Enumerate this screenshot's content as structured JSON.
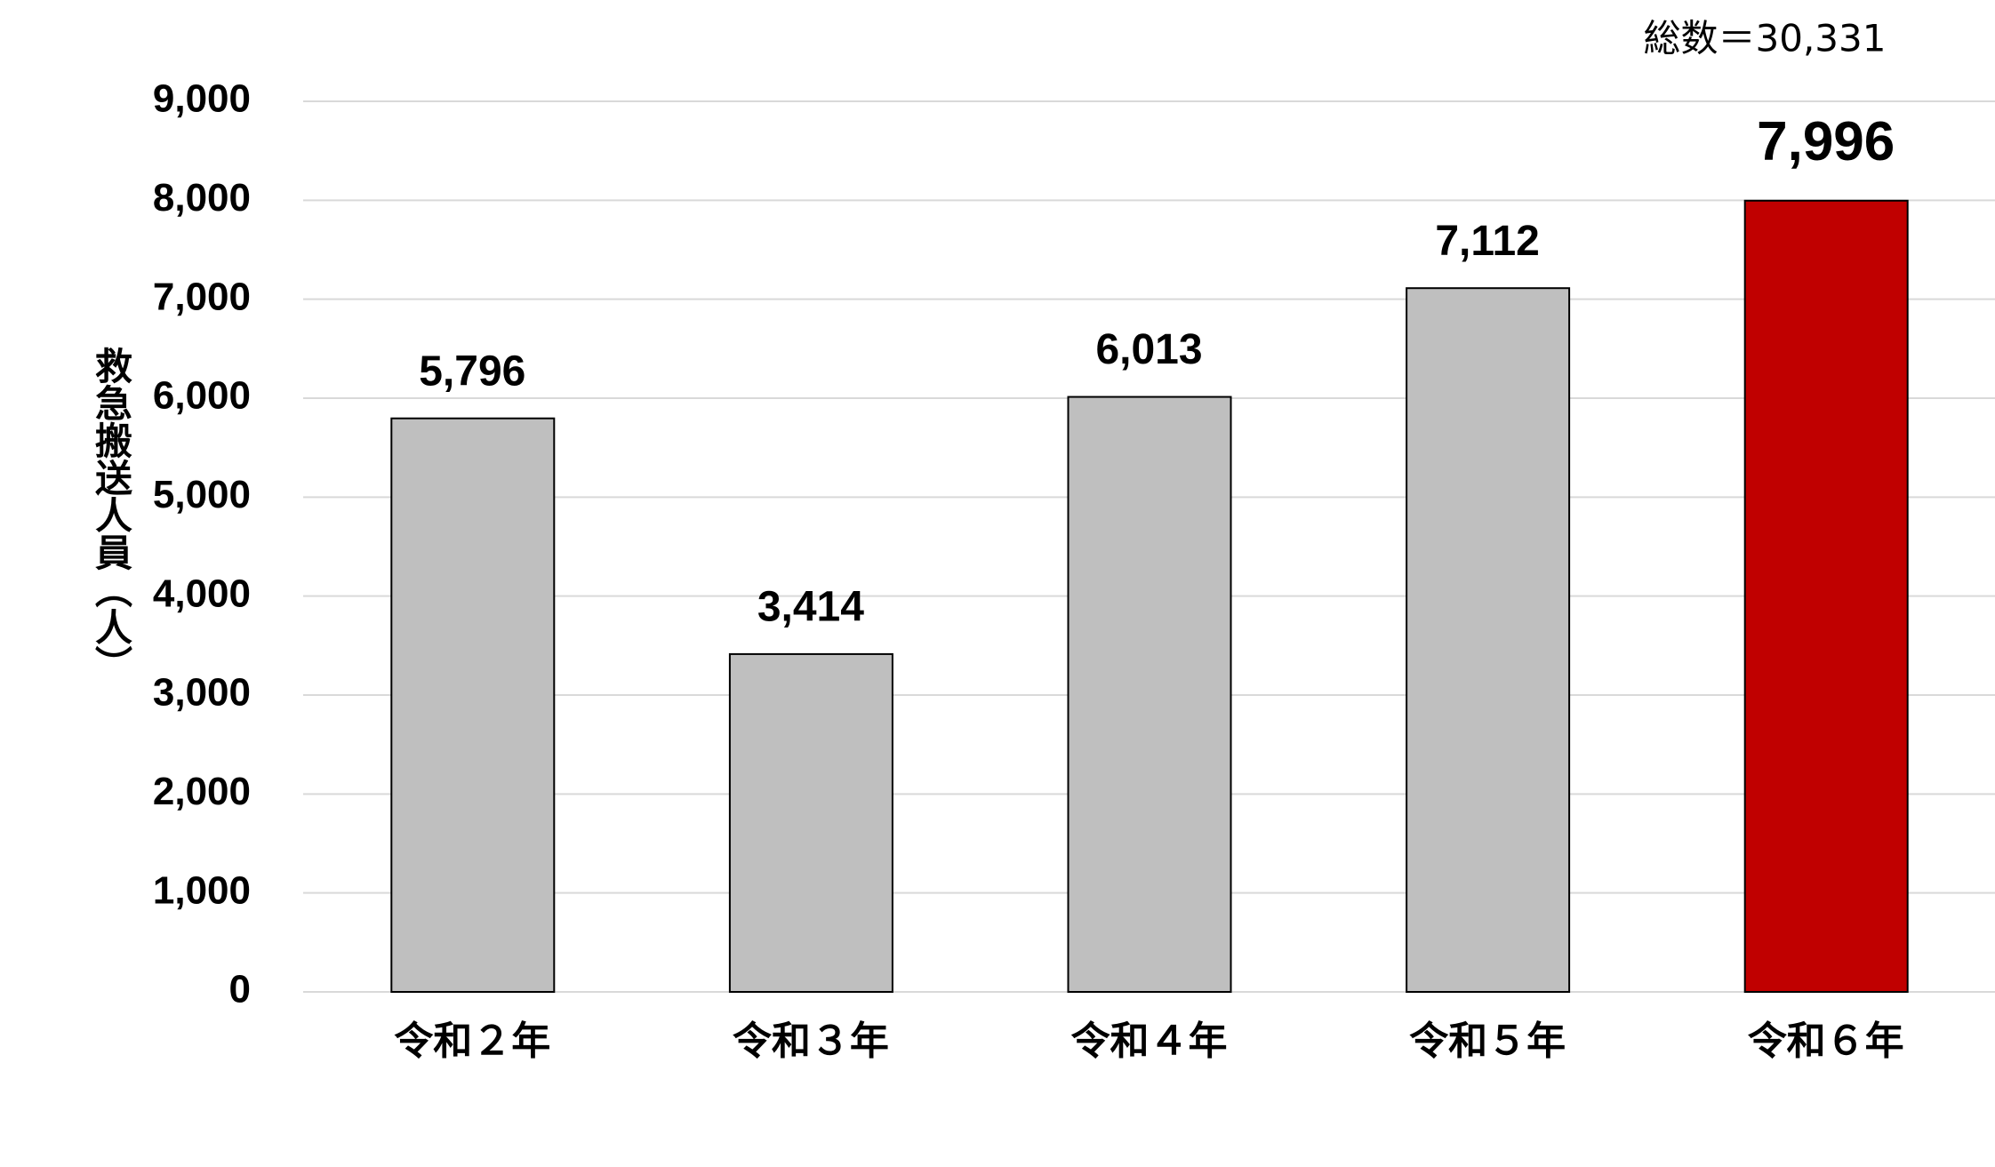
{
  "chart_data": {
    "type": "bar",
    "y_label": "救急搬送人員（人）",
    "annotation": "総数＝30,331",
    "categories": [
      "令和２年",
      "令和３年",
      "令和４年",
      "令和５年",
      "令和６年"
    ],
    "values": [
      5796,
      3414,
      6013,
      7112,
      7996
    ],
    "value_labels": [
      "5,796",
      "3,414",
      "6,013",
      "7,112",
      "7,996"
    ],
    "colors": [
      "#bfbfbf",
      "#bfbfbf",
      "#bfbfbf",
      "#bfbfbf",
      "#c00000"
    ],
    "ylim": [
      0,
      9000
    ],
    "yticks": [
      0,
      {
        "value": 1000,
        "label": "1,000"
      },
      {
        "value": 2000,
        "label": "2,000"
      },
      {
        "value": 3000,
        "label": "3,000"
      },
      {
        "value": 4000,
        "label": "4,000"
      },
      {
        "value": 5000,
        "label": "5,000"
      },
      {
        "value": 6000,
        "label": "6,000"
      },
      {
        "value": 7000,
        "label": "7,000"
      },
      {
        "value": 8000,
        "label": "8,000"
      },
      {
        "value": 9000,
        "label": "9,000"
      }
    ],
    "grid": true
  }
}
